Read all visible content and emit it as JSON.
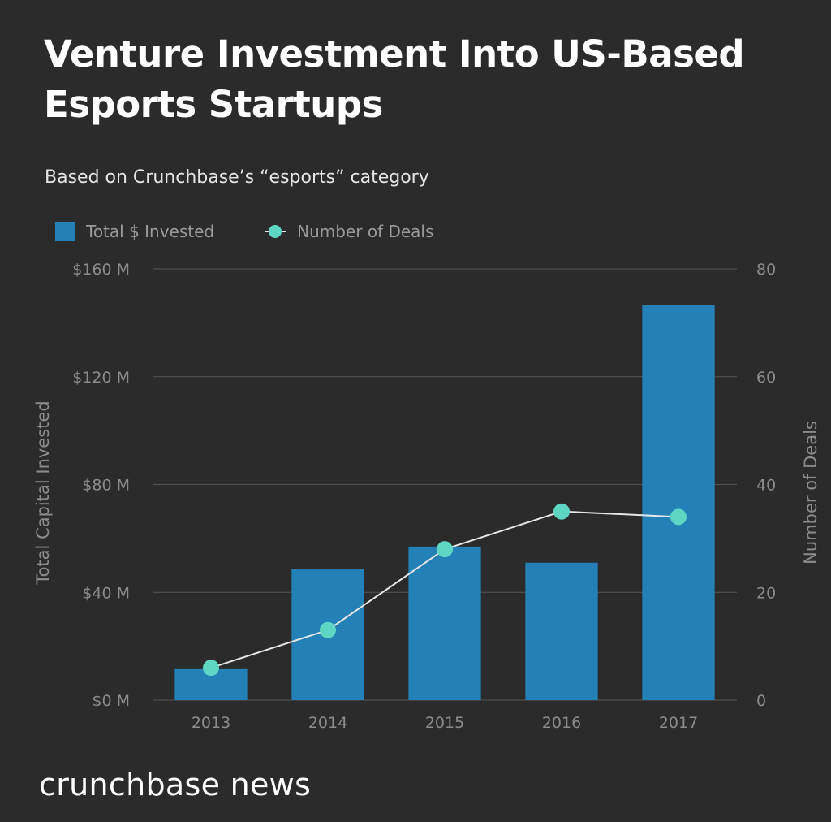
{
  "title": "Venture Investment Into US-Based Esports Startups",
  "subtitle": "Based on Crunchbase’s “esports” category",
  "brand": "crunchbase news",
  "colors": {
    "bar": "#2381b8",
    "dot": "#5fd6c3",
    "line": "#e6e6e6",
    "grid": "#555555",
    "axis_text": "#8c8c8c"
  },
  "chart_data": {
    "type": "bar",
    "categories": [
      "2013",
      "2014",
      "2015",
      "2016",
      "2017"
    ],
    "series": [
      {
        "name": "Total $ Invested",
        "type": "bar",
        "axis": "left",
        "values": [
          11.5,
          48.5,
          57,
          51,
          146.5
        ]
      },
      {
        "name": "Number of Deals",
        "type": "line",
        "axis": "right",
        "values": [
          6,
          13,
          28,
          35,
          34
        ]
      }
    ],
    "ylabel": "Total Capital Invested",
    "ylabel_right": "Number of Deals",
    "ylim": [
      0,
      160
    ],
    "ylim_right": [
      0,
      80
    ],
    "yticks": [
      "$0 M",
      "$40 M",
      "$80 M",
      "$120 M",
      "$160 M"
    ],
    "yticks_right": [
      "0",
      "20",
      "40",
      "60",
      "80"
    ],
    "grid": true,
    "legend_position": "top-left"
  }
}
